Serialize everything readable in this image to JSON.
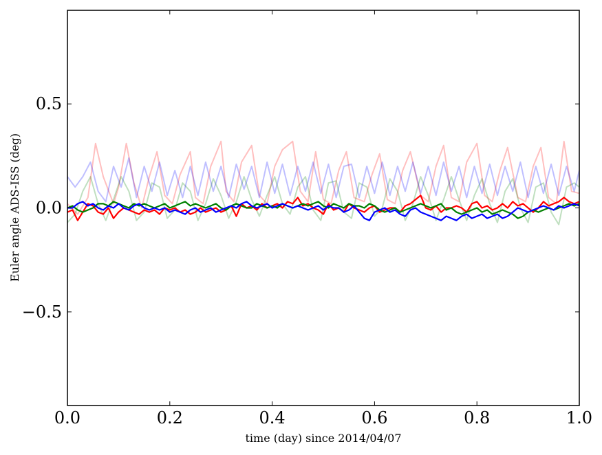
{
  "chart_data": {
    "type": "line",
    "title": "",
    "xlabel": "time (day) since 2014/04/07",
    "ylabel": "Euler angle ADS-ISS (deg)",
    "xlim": [
      0.0,
      1.0
    ],
    "ylim": [
      -0.95,
      0.95
    ],
    "grid": false,
    "x_ticks": [
      0.0,
      0.2,
      0.4,
      0.6,
      0.8,
      1.0
    ],
    "x_tick_labels": [
      "0.0",
      "0.2",
      "0.4",
      "0.6",
      "0.8",
      "1.0"
    ],
    "y_ticks": [
      0.5,
      0.0,
      -0.5
    ],
    "y_tick_labels": [
      "0.5",
      "0.0",
      "−0.5"
    ],
    "series": [
      {
        "color": "#ff0000",
        "alpha": 0.25,
        "x": [
          0.0,
          0.02,
          0.04,
          0.055,
          0.07,
          0.09,
          0.1,
          0.115,
          0.13,
          0.145,
          0.16,
          0.175,
          0.19,
          0.205,
          0.22,
          0.24,
          0.25,
          0.265,
          0.28,
          0.3,
          0.31,
          0.325,
          0.34,
          0.36,
          0.375,
          0.39,
          0.405,
          0.42,
          0.44,
          0.455,
          0.47,
          0.485,
          0.5,
          0.515,
          0.53,
          0.545,
          0.56,
          0.58,
          0.595,
          0.61,
          0.625,
          0.64,
          0.655,
          0.67,
          0.69,
          0.705,
          0.72,
          0.735,
          0.75,
          0.765,
          0.78,
          0.8,
          0.815,
          0.83,
          0.845,
          0.86,
          0.88,
          0.895,
          0.91,
          0.925,
          0.94,
          0.955,
          0.97,
          0.985,
          1.0
        ],
        "y": [
          0.02,
          -0.03,
          0.05,
          0.31,
          0.15,
          0.02,
          0.1,
          0.31,
          0.12,
          0.0,
          0.15,
          0.27,
          0.06,
          0.02,
          0.16,
          0.27,
          0.05,
          0.02,
          0.2,
          0.32,
          0.08,
          0.03,
          0.22,
          0.3,
          0.06,
          0.02,
          0.2,
          0.28,
          0.32,
          0.08,
          0.03,
          0.27,
          0.04,
          0.02,
          0.18,
          0.27,
          0.05,
          0.03,
          0.16,
          0.26,
          0.04,
          0.02,
          0.18,
          0.27,
          0.06,
          0.03,
          0.2,
          0.3,
          0.05,
          0.03,
          0.22,
          0.31,
          0.06,
          0.03,
          0.18,
          0.29,
          0.05,
          0.03,
          0.2,
          0.29,
          0.05,
          0.02,
          0.32,
          0.08,
          0.07
        ]
      },
      {
        "color": "#008000",
        "alpha": 0.25,
        "x": [
          0.0,
          0.015,
          0.03,
          0.045,
          0.06,
          0.075,
          0.09,
          0.105,
          0.12,
          0.135,
          0.15,
          0.165,
          0.18,
          0.195,
          0.21,
          0.225,
          0.24,
          0.255,
          0.27,
          0.285,
          0.3,
          0.315,
          0.33,
          0.345,
          0.36,
          0.375,
          0.39,
          0.405,
          0.42,
          0.435,
          0.45,
          0.465,
          0.48,
          0.495,
          0.51,
          0.525,
          0.54,
          0.555,
          0.57,
          0.585,
          0.6,
          0.615,
          0.63,
          0.645,
          0.66,
          0.675,
          0.69,
          0.705,
          0.72,
          0.735,
          0.75,
          0.765,
          0.78,
          0.795,
          0.81,
          0.825,
          0.84,
          0.855,
          0.87,
          0.885,
          0.9,
          0.915,
          0.93,
          0.945,
          0.96,
          0.975,
          0.99,
          1.0
        ],
        "y": [
          -0.07,
          -0.03,
          0.08,
          0.15,
          0.02,
          -0.06,
          0.04,
          0.15,
          0.08,
          -0.06,
          -0.02,
          0.12,
          0.1,
          -0.05,
          -0.01,
          0.12,
          0.08,
          -0.06,
          0.02,
          0.14,
          0.06,
          -0.05,
          0.03,
          0.15,
          0.04,
          -0.04,
          0.06,
          0.15,
          0.02,
          -0.03,
          0.1,
          0.15,
          -0.01,
          -0.06,
          0.12,
          0.13,
          -0.02,
          -0.05,
          0.12,
          0.1,
          -0.04,
          0.0,
          0.14,
          0.08,
          -0.06,
          0.02,
          0.15,
          0.06,
          -0.06,
          0.04,
          0.15,
          0.04,
          -0.06,
          0.06,
          0.14,
          0.02,
          -0.07,
          0.08,
          0.14,
          0.0,
          -0.07,
          0.1,
          0.12,
          -0.02,
          -0.08,
          0.1,
          0.12,
          0.1
        ]
      },
      {
        "color": "#0000ff",
        "alpha": 0.25,
        "x": [
          0.0,
          0.015,
          0.03,
          0.045,
          0.06,
          0.075,
          0.09,
          0.105,
          0.12,
          0.135,
          0.15,
          0.165,
          0.18,
          0.195,
          0.21,
          0.225,
          0.24,
          0.255,
          0.27,
          0.285,
          0.3,
          0.315,
          0.33,
          0.345,
          0.36,
          0.375,
          0.39,
          0.405,
          0.42,
          0.435,
          0.45,
          0.465,
          0.48,
          0.495,
          0.51,
          0.525,
          0.54,
          0.555,
          0.57,
          0.585,
          0.6,
          0.615,
          0.63,
          0.645,
          0.66,
          0.675,
          0.69,
          0.705,
          0.72,
          0.735,
          0.75,
          0.765,
          0.78,
          0.795,
          0.81,
          0.825,
          0.84,
          0.855,
          0.87,
          0.885,
          0.9,
          0.915,
          0.93,
          0.945,
          0.96,
          0.975,
          0.99,
          1.0
        ],
        "y": [
          0.15,
          0.1,
          0.15,
          0.22,
          0.08,
          0.03,
          0.2,
          0.1,
          0.24,
          0.05,
          0.2,
          0.08,
          0.22,
          0.06,
          0.18,
          0.05,
          0.2,
          0.06,
          0.22,
          0.08,
          0.2,
          0.05,
          0.21,
          0.09,
          0.2,
          0.05,
          0.22,
          0.07,
          0.21,
          0.06,
          0.2,
          0.08,
          0.22,
          0.07,
          0.21,
          0.05,
          0.2,
          0.21,
          0.05,
          0.2,
          0.07,
          0.22,
          0.06,
          0.2,
          0.08,
          0.22,
          0.07,
          0.2,
          0.06,
          0.22,
          0.08,
          0.2,
          0.05,
          0.2,
          0.07,
          0.21,
          0.06,
          0.2,
          0.08,
          0.22,
          0.05,
          0.2,
          0.07,
          0.21,
          0.06,
          0.2,
          0.08,
          0.18
        ]
      },
      {
        "color": "#ff0000",
        "alpha": 1.0,
        "x": [
          0.0,
          0.01,
          0.02,
          0.03,
          0.04,
          0.05,
          0.06,
          0.07,
          0.08,
          0.09,
          0.1,
          0.11,
          0.12,
          0.13,
          0.14,
          0.15,
          0.16,
          0.17,
          0.18,
          0.19,
          0.2,
          0.21,
          0.22,
          0.23,
          0.24,
          0.25,
          0.26,
          0.27,
          0.28,
          0.29,
          0.3,
          0.31,
          0.32,
          0.33,
          0.34,
          0.35,
          0.36,
          0.37,
          0.38,
          0.39,
          0.4,
          0.41,
          0.42,
          0.43,
          0.44,
          0.45,
          0.46,
          0.47,
          0.48,
          0.49,
          0.5,
          0.51,
          0.52,
          0.53,
          0.54,
          0.55,
          0.56,
          0.57,
          0.58,
          0.59,
          0.6,
          0.61,
          0.62,
          0.63,
          0.64,
          0.65,
          0.66,
          0.67,
          0.68,
          0.69,
          0.7,
          0.71,
          0.72,
          0.73,
          0.74,
          0.75,
          0.76,
          0.77,
          0.78,
          0.79,
          0.8,
          0.81,
          0.82,
          0.83,
          0.84,
          0.85,
          0.86,
          0.87,
          0.88,
          0.89,
          0.9,
          0.91,
          0.92,
          0.93,
          0.94,
          0.95,
          0.96,
          0.97,
          0.98,
          0.99,
          1.0
        ],
        "y": [
          -0.02,
          -0.01,
          -0.06,
          -0.02,
          0.02,
          0.01,
          -0.02,
          -0.03,
          0.0,
          -0.05,
          -0.02,
          0.0,
          -0.01,
          -0.02,
          -0.03,
          -0.01,
          -0.02,
          -0.01,
          -0.03,
          0.0,
          -0.01,
          0.0,
          -0.02,
          -0.01,
          -0.03,
          -0.02,
          0.0,
          -0.02,
          -0.01,
          0.0,
          -0.02,
          -0.01,
          0.01,
          -0.04,
          0.02,
          0.0,
          0.01,
          -0.01,
          0.02,
          0.0,
          0.01,
          0.02,
          0.0,
          0.03,
          0.02,
          0.05,
          0.01,
          0.02,
          0.0,
          -0.01,
          -0.03,
          0.02,
          -0.01,
          0.0,
          -0.02,
          0.02,
          0.0,
          -0.01,
          -0.02,
          0.0,
          0.01,
          -0.02,
          -0.01,
          0.0,
          0.0,
          -0.02,
          0.01,
          0.02,
          0.04,
          0.06,
          0.0,
          -0.01,
          0.01,
          -0.02,
          0.0,
          0.0,
          0.01,
          0.0,
          -0.02,
          0.02,
          0.03,
          0.0,
          0.01,
          -0.01,
          0.0,
          0.02,
          0.0,
          0.03,
          0.01,
          0.02,
          0.0,
          -0.02,
          0.0,
          0.03,
          0.01,
          0.02,
          0.03,
          0.05,
          0.03,
          0.02,
          0.03
        ]
      },
      {
        "color": "#008000",
        "alpha": 1.0,
        "x": [
          0.0,
          0.01,
          0.02,
          0.03,
          0.04,
          0.05,
          0.06,
          0.07,
          0.08,
          0.09,
          0.1,
          0.11,
          0.12,
          0.13,
          0.14,
          0.15,
          0.16,
          0.17,
          0.18,
          0.19,
          0.2,
          0.21,
          0.22,
          0.23,
          0.24,
          0.25,
          0.26,
          0.27,
          0.28,
          0.29,
          0.3,
          0.31,
          0.32,
          0.33,
          0.34,
          0.35,
          0.36,
          0.37,
          0.38,
          0.39,
          0.4,
          0.41,
          0.42,
          0.43,
          0.44,
          0.45,
          0.46,
          0.47,
          0.48,
          0.49,
          0.5,
          0.51,
          0.52,
          0.53,
          0.54,
          0.55,
          0.56,
          0.57,
          0.58,
          0.59,
          0.6,
          0.61,
          0.62,
          0.63,
          0.64,
          0.65,
          0.66,
          0.67,
          0.68,
          0.69,
          0.7,
          0.71,
          0.72,
          0.73,
          0.74,
          0.75,
          0.76,
          0.77,
          0.78,
          0.79,
          0.8,
          0.81,
          0.82,
          0.83,
          0.84,
          0.85,
          0.86,
          0.87,
          0.88,
          0.89,
          0.9,
          0.91,
          0.92,
          0.93,
          0.94,
          0.95,
          0.96,
          0.97,
          0.98,
          0.99,
          1.0
        ],
        "y": [
          0.0,
          0.01,
          -0.01,
          -0.02,
          -0.01,
          0.0,
          0.02,
          0.02,
          0.01,
          0.03,
          0.02,
          0.01,
          0.0,
          0.02,
          0.01,
          0.02,
          0.01,
          0.0,
          0.01,
          0.02,
          0.0,
          0.01,
          0.02,
          0.03,
          0.01,
          0.02,
          0.01,
          0.0,
          0.01,
          0.02,
          0.0,
          -0.01,
          0.01,
          0.02,
          0.01,
          0.0,
          0.0,
          0.02,
          0.01,
          0.0,
          0.01,
          0.0,
          0.02,
          0.01,
          0.0,
          0.01,
          0.02,
          0.01,
          0.02,
          0.03,
          0.01,
          0.0,
          0.02,
          0.01,
          0.0,
          0.02,
          0.01,
          0.01,
          0.0,
          0.02,
          0.01,
          -0.01,
          -0.02,
          -0.01,
          0.0,
          -0.02,
          -0.01,
          0.0,
          0.01,
          0.02,
          0.01,
          0.0,
          0.01,
          0.02,
          -0.01,
          0.0,
          -0.02,
          -0.03,
          -0.02,
          -0.01,
          0.0,
          -0.02,
          -0.01,
          -0.03,
          -0.02,
          -0.01,
          -0.02,
          -0.03,
          -0.05,
          -0.04,
          -0.02,
          -0.01,
          -0.02,
          -0.01,
          0.0,
          -0.01,
          0.0,
          0.01,
          0.02,
          0.01,
          0.02
        ]
      },
      {
        "color": "#0000ff",
        "alpha": 1.0,
        "x": [
          0.0,
          0.01,
          0.02,
          0.03,
          0.04,
          0.05,
          0.06,
          0.07,
          0.08,
          0.09,
          0.1,
          0.11,
          0.12,
          0.13,
          0.14,
          0.15,
          0.16,
          0.17,
          0.18,
          0.19,
          0.2,
          0.21,
          0.22,
          0.23,
          0.24,
          0.25,
          0.26,
          0.27,
          0.28,
          0.29,
          0.3,
          0.31,
          0.32,
          0.33,
          0.34,
          0.35,
          0.36,
          0.37,
          0.38,
          0.39,
          0.4,
          0.41,
          0.42,
          0.43,
          0.44,
          0.45,
          0.46,
          0.47,
          0.48,
          0.49,
          0.5,
          0.51,
          0.52,
          0.53,
          0.54,
          0.55,
          0.56,
          0.57,
          0.58,
          0.59,
          0.6,
          0.61,
          0.62,
          0.63,
          0.64,
          0.65,
          0.66,
          0.67,
          0.68,
          0.69,
          0.7,
          0.71,
          0.72,
          0.73,
          0.74,
          0.75,
          0.76,
          0.77,
          0.78,
          0.79,
          0.8,
          0.81,
          0.82,
          0.83,
          0.84,
          0.85,
          0.86,
          0.87,
          0.88,
          0.89,
          0.9,
          0.91,
          0.92,
          0.93,
          0.94,
          0.95,
          0.96,
          0.97,
          0.98,
          0.99,
          1.0
        ],
        "y": [
          0.0,
          0.0,
          0.02,
          0.03,
          0.01,
          0.02,
          0.0,
          -0.01,
          0.01,
          0.0,
          0.02,
          0.0,
          -0.01,
          0.01,
          0.02,
          0.0,
          -0.01,
          0.0,
          -0.01,
          0.0,
          -0.02,
          -0.01,
          -0.02,
          -0.03,
          -0.01,
          0.0,
          -0.02,
          -0.01,
          0.0,
          -0.02,
          -0.01,
          0.0,
          0.01,
          0.0,
          0.02,
          0.03,
          0.01,
          0.0,
          0.01,
          0.02,
          0.0,
          0.01,
          0.02,
          0.01,
          0.0,
          0.01,
          0.0,
          -0.01,
          0.0,
          0.01,
          -0.01,
          0.01,
          0.0,
          0.0,
          -0.02,
          -0.01,
          0.01,
          -0.02,
          -0.05,
          -0.06,
          -0.02,
          -0.01,
          0.0,
          -0.02,
          -0.01,
          -0.03,
          -0.04,
          -0.01,
          0.0,
          -0.02,
          -0.03,
          -0.04,
          -0.05,
          -0.06,
          -0.04,
          -0.05,
          -0.06,
          -0.04,
          -0.03,
          -0.05,
          -0.04,
          -0.03,
          -0.05,
          -0.04,
          -0.03,
          -0.05,
          -0.04,
          -0.02,
          0.0,
          -0.01,
          -0.02,
          -0.01,
          0.0,
          0.01,
          0.0,
          -0.01,
          0.01,
          0.0,
          0.01,
          0.02,
          0.01
        ]
      }
    ]
  }
}
